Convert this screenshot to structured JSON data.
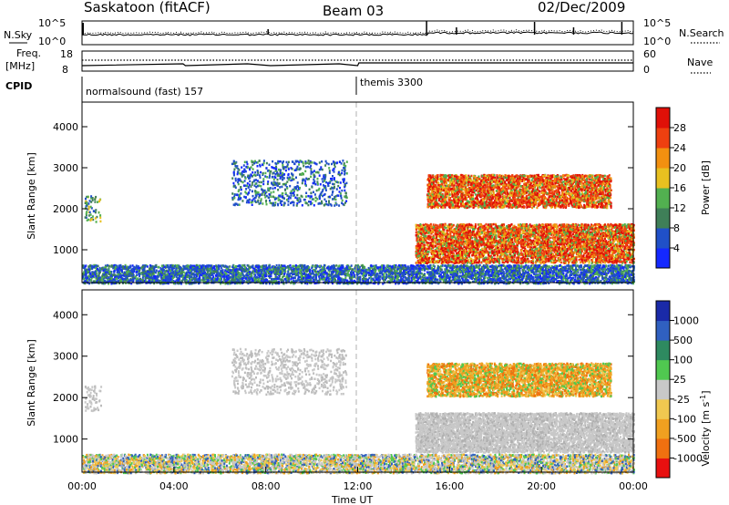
{
  "header": {
    "station": "Saskatoon (fitACF)",
    "beam": "Beam 03",
    "date": "02/Dec/2009"
  },
  "chart_data": [
    {
      "type": "line",
      "name": "noise-panel",
      "left_label": "N.Sky",
      "right_label": "N.Search",
      "left_ticks": [
        "10^5",
        "10^0"
      ],
      "right_ticks": [
        "10^5",
        "10^0"
      ],
      "series": [
        {
          "name": "N.Sky",
          "style": "solid"
        },
        {
          "name": "N.Search",
          "style": "dotted"
        }
      ]
    },
    {
      "type": "line",
      "name": "frequency-panel",
      "left_label": "Freq.",
      "left_unit": "[MHz]",
      "right_label": "Nave",
      "left_ticks": [
        "18",
        "8"
      ],
      "right_ticks": [
        "60",
        "0"
      ],
      "series": [
        {
          "name": "Freq.",
          "style": "solid"
        },
        {
          "name": "Nave",
          "style": "dotted"
        }
      ]
    },
    {
      "type": "table",
      "name": "cpid-panel",
      "label": "CPID",
      "modes": [
        {
          "label": "normalsound (fast) 157",
          "start_hour": 0,
          "end_hour": 12
        },
        {
          "label": "themis 3300",
          "start_hour": 12,
          "end_hour": 24
        }
      ]
    },
    {
      "type": "heatmap",
      "name": "power-panel",
      "ylabel": "Slant Range [km]",
      "yticks": [
        1000,
        2000,
        3000,
        4000
      ],
      "ylim": [
        200,
        4600
      ],
      "xlim": [
        0,
        24
      ],
      "colorbar_label": "Power [dB]",
      "colorbar_ticks": [
        "4",
        "8",
        "12",
        "16",
        "20",
        "24",
        "28"
      ],
      "colorbar_colors": [
        "#1428ff",
        "#2050c8",
        "#3f7f58",
        "#52b050",
        "#e8c020",
        "#f29010",
        "#ee4010",
        "#e01008"
      ],
      "regions": [
        {
          "name": "ground scatter",
          "x": [
            0,
            24
          ],
          "y": [
            200,
            650
          ],
          "level": "low"
        },
        {
          "name": "early patch",
          "x": [
            0.1,
            0.8
          ],
          "y": [
            1700,
            2350
          ],
          "level": "mid"
        },
        {
          "name": "morning patches",
          "x": [
            6.5,
            11.5
          ],
          "y": [
            2100,
            3200
          ],
          "level": "low"
        },
        {
          "name": "evening upper band",
          "x": [
            15,
            23
          ],
          "y": [
            2050,
            2850
          ],
          "level": "high"
        },
        {
          "name": "evening lower band",
          "x": [
            14.5,
            24
          ],
          "y": [
            700,
            1650
          ],
          "level": "high"
        }
      ]
    },
    {
      "type": "heatmap",
      "name": "velocity-panel",
      "ylabel": "Slant Range [km]",
      "yticks": [
        1000,
        2000,
        3000,
        4000
      ],
      "ylim": [
        200,
        4600
      ],
      "xlim": [
        0,
        24
      ],
      "xlabel": "Time UT",
      "xticks": [
        "00:00",
        "04:00",
        "08:00",
        "12:00",
        "16:00",
        "20:00",
        "00:00"
      ],
      "colorbar_label": "Velocity [m s-1]",
      "colorbar_label_main": "Velocity [m s",
      "colorbar_label_sup": "-1",
      "colorbar_label_end": "]",
      "colorbar_ticks": [
        "-1000",
        "-500",
        "-100",
        "-25",
        "25",
        "100",
        "500",
        "1000"
      ],
      "colorbar_colors": [
        "#e81010",
        "#f07010",
        "#f0a020",
        "#f0c850",
        "#c8c8c8",
        "#50c850",
        "#2e8a60",
        "#3060c0",
        "#1a2aa8"
      ],
      "regions": [
        {
          "name": "ground scatter",
          "x": [
            0,
            24
          ],
          "y": [
            200,
            650
          ],
          "value": "mixed"
        },
        {
          "name": "evening upper band",
          "x": [
            15,
            23
          ],
          "y": [
            2050,
            2850
          ],
          "value": "negative"
        },
        {
          "name": "evening lower band",
          "x": [
            14.5,
            24
          ],
          "y": [
            700,
            1650
          ],
          "value": "near zero"
        }
      ]
    }
  ]
}
